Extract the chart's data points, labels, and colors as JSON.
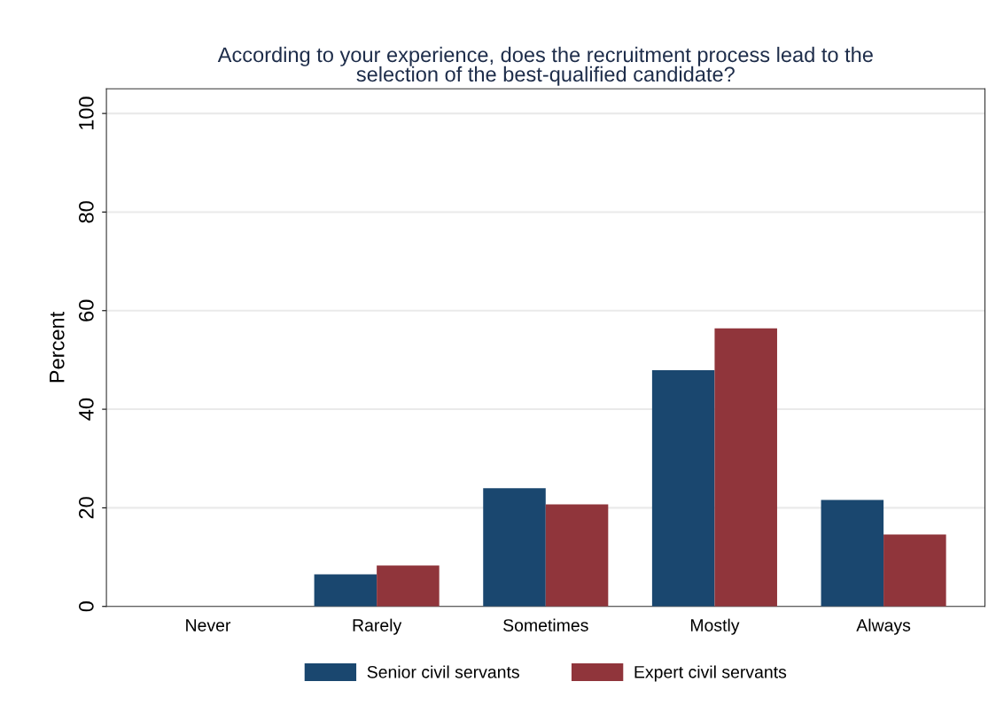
{
  "chart_data": {
    "type": "bar",
    "title": "According to your experience, does the recruitment process lead to the\nselection of the best-qualified candidate?",
    "ylabel": "Percent",
    "categories": [
      "Never",
      "Rarely",
      "Sometimes",
      "Mostly",
      "Always"
    ],
    "series": [
      {
        "name": "Senior civil servants",
        "color": "#1a476f",
        "values": [
          0,
          6.5,
          24.0,
          47.9,
          21.6
        ]
      },
      {
        "name": "Expert civil servants",
        "color": "#90353b",
        "values": [
          0,
          8.3,
          20.7,
          56.4,
          14.6
        ]
      }
    ],
    "ylim": [
      0,
      105
    ],
    "yticks": [
      0,
      20,
      40,
      60,
      80,
      100
    ],
    "grid": "y",
    "legend": "bottom"
  }
}
